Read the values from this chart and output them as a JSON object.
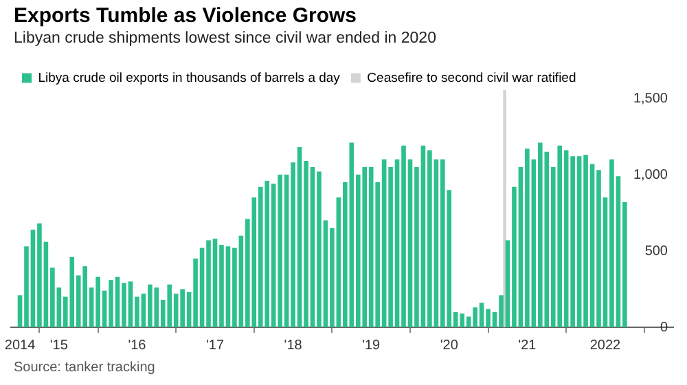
{
  "chart_data": {
    "type": "bar",
    "title": "Exports Tumble as Violence Grows",
    "subtitle": "Libyan crude shipments lowest since civil war ended in 2020",
    "annotations": [
      "Source: tanker tracking"
    ],
    "x": [
      "2014-07",
      "2014-08",
      "2014-09",
      "2014-10",
      "2014-11",
      "2014-12",
      "2015-01",
      "2015-02",
      "2015-03",
      "2015-04",
      "2015-05",
      "2015-06",
      "2015-07",
      "2015-08",
      "2015-09",
      "2015-10",
      "2015-11",
      "2015-12",
      "2016-01",
      "2016-02",
      "2016-03",
      "2016-04",
      "2016-05",
      "2016-06",
      "2016-07",
      "2016-08",
      "2016-09",
      "2016-10",
      "2016-11",
      "2016-12",
      "2017-01",
      "2017-02",
      "2017-03",
      "2017-04",
      "2017-05",
      "2017-06",
      "2017-07",
      "2017-08",
      "2017-09",
      "2017-10",
      "2017-11",
      "2017-12",
      "2018-01",
      "2018-02",
      "2018-03",
      "2018-04",
      "2018-05",
      "2018-06",
      "2018-07",
      "2018-08",
      "2018-09",
      "2018-10",
      "2018-11",
      "2018-12",
      "2019-01",
      "2019-02",
      "2019-03",
      "2019-04",
      "2019-05",
      "2019-06",
      "2019-07",
      "2019-08",
      "2019-09",
      "2019-10",
      "2019-11",
      "2019-12",
      "2020-01",
      "2020-02",
      "2020-03",
      "2020-04",
      "2020-05",
      "2020-06",
      "2020-07",
      "2020-08",
      "2020-09",
      "2020-10",
      "2020-11",
      "2020-12",
      "2021-01",
      "2021-02",
      "2021-03",
      "2021-04",
      "2021-05",
      "2021-06",
      "2021-07",
      "2021-08",
      "2021-09",
      "2021-10",
      "2021-11",
      "2021-12",
      "2022-01",
      "2022-02",
      "2022-03",
      "2022-04"
    ],
    "series": [
      {
        "name": "Libya crude oil exports in thousands of barrels a day",
        "color": "#2ec08c",
        "values": [
          210,
          530,
          640,
          680,
          560,
          390,
          260,
          200,
          460,
          340,
          400,
          260,
          330,
          240,
          310,
          330,
          290,
          300,
          200,
          220,
          280,
          260,
          180,
          280,
          220,
          250,
          230,
          450,
          520,
          570,
          580,
          540,
          530,
          520,
          600,
          710,
          850,
          920,
          960,
          940,
          1000,
          1000,
          1080,
          1180,
          1090,
          1050,
          1020,
          700,
          650,
          850,
          950,
          1210,
          1000,
          1050,
          1050,
          950,
          1100,
          1050,
          1100,
          1190,
          1100,
          1050,
          1190,
          1160,
          1100,
          1100,
          900,
          100,
          90,
          70,
          130,
          160,
          120,
          100,
          210,
          570,
          920,
          1050,
          1170,
          1100,
          1210,
          1150,
          1050,
          1190,
          1160,
          1120,
          1120,
          1130,
          1070,
          1030,
          850,
          1100,
          990,
          820
        ]
      }
    ],
    "bands": [
      {
        "axis": "x",
        "from": "2020-09-10",
        "to": "2020-09-25",
        "label": "Ceasefire to second civil war ratified",
        "color": "#d4d4d4"
      }
    ],
    "xlim": [
      "2014-05-20",
      "2022-11-15"
    ],
    "xticks": [
      {
        "value": "2014-07",
        "label": "2014"
      },
      {
        "value": "2015-01",
        "label": "'15"
      },
      {
        "value": "2016-01",
        "label": "'16"
      },
      {
        "value": "2017-01",
        "label": "'17"
      },
      {
        "value": "2018-01",
        "label": "'18"
      },
      {
        "value": "2019-01",
        "label": "'19"
      },
      {
        "value": "2020-01",
        "label": "'20"
      },
      {
        "value": "2021-01",
        "label": "'21"
      },
      {
        "value": "2022-01",
        "label": "2022"
      }
    ],
    "ylim": [
      0,
      1500
    ],
    "yticks": [
      0,
      500,
      {
        "value": 1000,
        "label": "1,000"
      },
      {
        "value": 1500,
        "label": "1,500"
      }
    ],
    "legend": "top left",
    "grid": false
  }
}
